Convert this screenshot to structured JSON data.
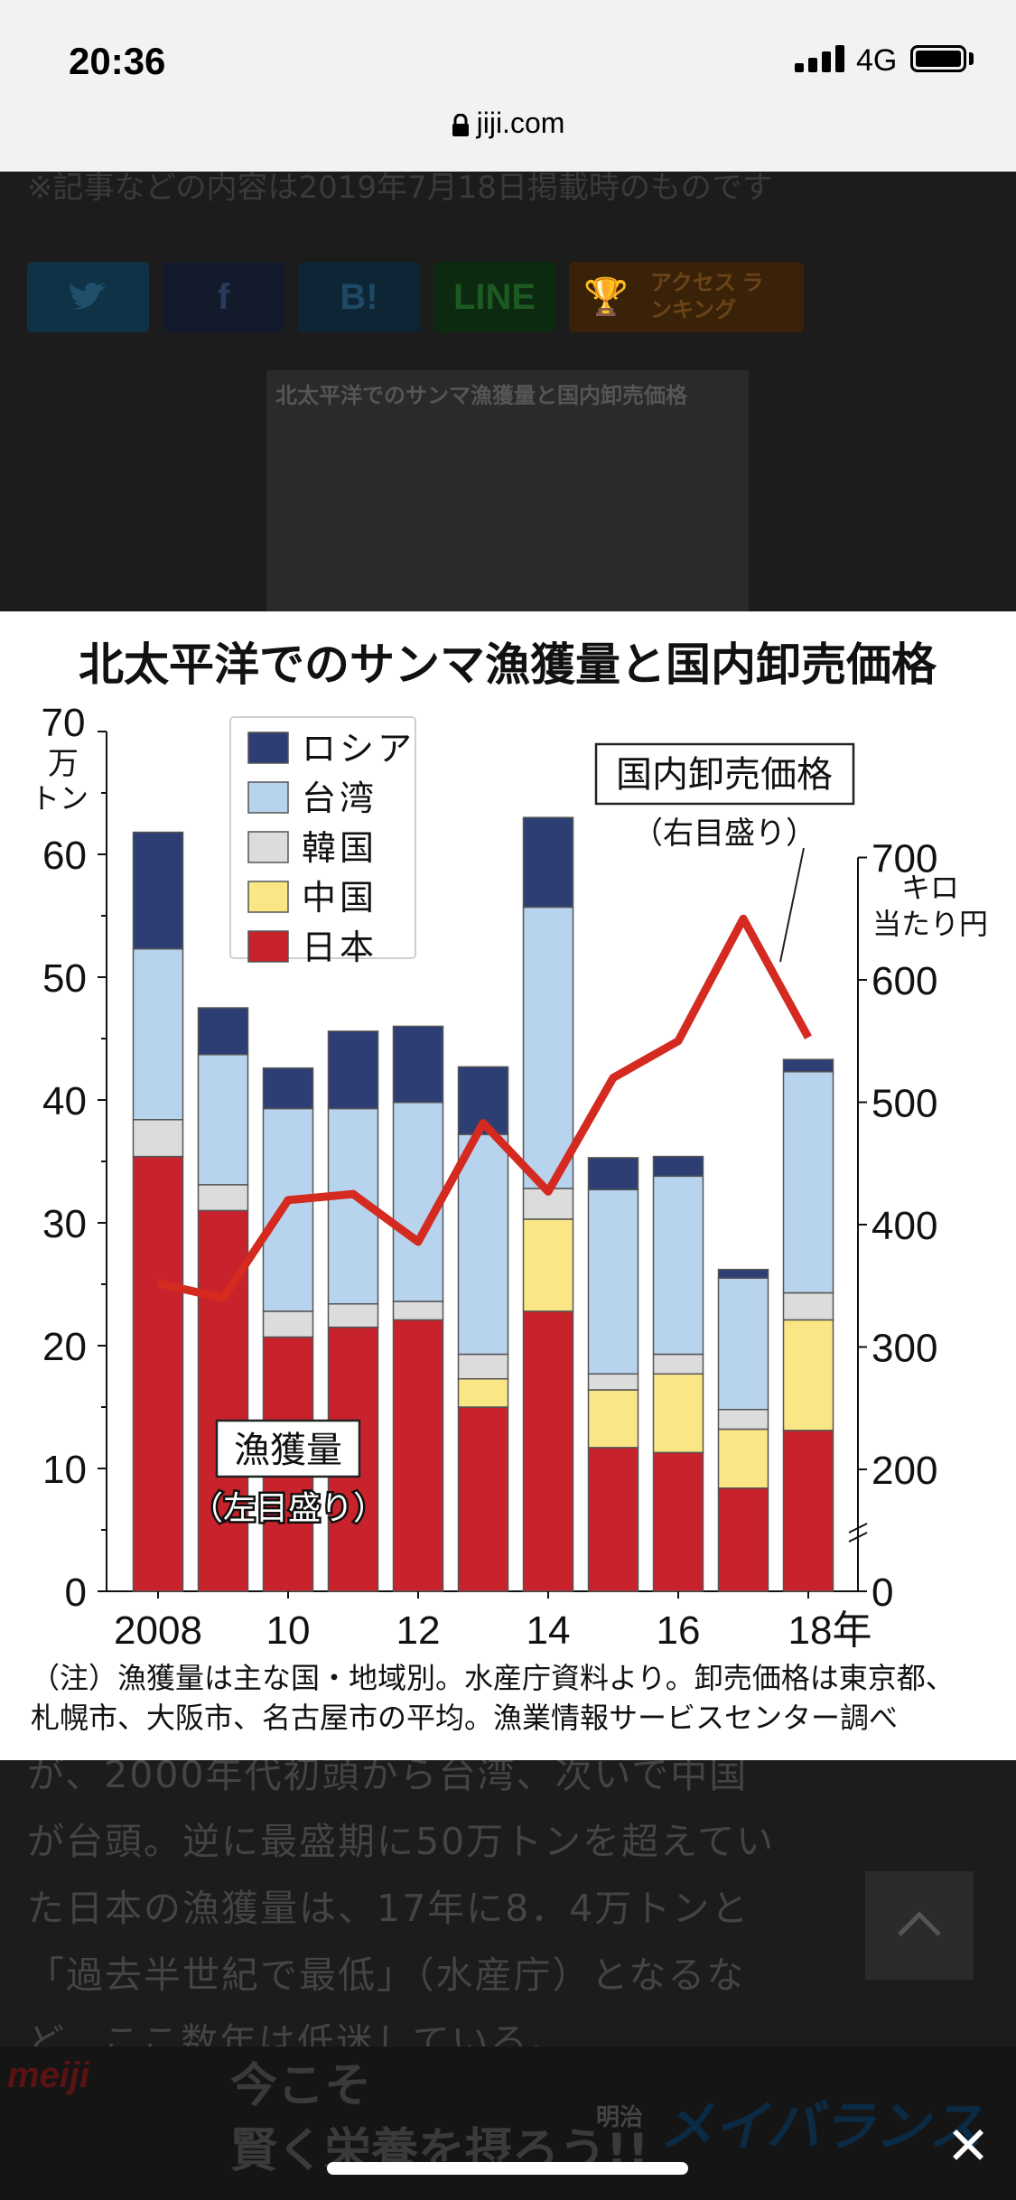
{
  "status_bar": {
    "time": "20:36",
    "network": "4G"
  },
  "browser": {
    "url": "jiji.com"
  },
  "article": {
    "notice": "※記事などの内容は2019年7月18日掲載時のものです",
    "share_buttons": [
      "",
      "f",
      "B!",
      "LINE",
      "アクセス ランキング"
    ],
    "thumbnail_title": "北太平洋でのサンマ漁獲量と国内卸売価格",
    "body_lines": [
      "が、2000年代初頭から台湾、次いで中国",
      "が台頭。逆に最盛期に50万トンを超えてい",
      "た日本の漁獲量は、17年に8．4万トンと",
      "「過去半世紀で最低」（水産庁）となるな",
      "ど、ここ数年は低迷している。"
    ]
  },
  "ad": {
    "logo": "meiji",
    "line1": "今こそ",
    "line2": "賢く栄養を摂ろう!!",
    "brand_small": "明治",
    "brand": "メイバランス"
  },
  "chart_data": {
    "type": "bar",
    "title": "北太平洋でのサンマ漁獲量と国内卸売価格",
    "categories": [
      "2008",
      "2009",
      "2010",
      "2011",
      "2012",
      "2013",
      "2014",
      "2015",
      "2016",
      "2017",
      "2018"
    ],
    "x_tick_labels": [
      "2008",
      "10",
      "12",
      "14",
      "16",
      "18年"
    ],
    "stacked": true,
    "series": [
      {
        "name": "日本",
        "color": "#c8232c",
        "values": [
          35.4,
          31.0,
          20.7,
          21.5,
          22.1,
          15.0,
          22.8,
          11.7,
          11.3,
          8.4,
          13.1
        ]
      },
      {
        "name": "中国",
        "color": "#fbe686",
        "values": [
          0,
          0,
          0,
          0,
          0,
          2.3,
          7.5,
          4.7,
          6.4,
          4.8,
          9.0
        ]
      },
      {
        "name": "韓国",
        "color": "#dcdcdc",
        "values": [
          3.0,
          2.1,
          2.1,
          1.9,
          1.5,
          2.0,
          2.5,
          1.3,
          1.6,
          1.6,
          2.2
        ]
      },
      {
        "name": "台湾",
        "color": "#b8d3ee",
        "values": [
          13.9,
          10.6,
          16.5,
          15.9,
          16.2,
          17.9,
          22.9,
          15.0,
          14.5,
          10.7,
          18.0
        ]
      },
      {
        "name": "ロシア",
        "color": "#2c3e74",
        "values": [
          9.5,
          3.8,
          3.3,
          6.3,
          6.2,
          5.5,
          7.3,
          2.6,
          1.6,
          0.7,
          1.0
        ]
      }
    ],
    "left_axis": {
      "label": "70\n万\nトン",
      "ylim": [
        0,
        70
      ],
      "ticks": [
        "0",
        "10",
        "20",
        "30",
        "40",
        "50",
        "60",
        "70"
      ]
    },
    "right_axis": {
      "label": "キロ\n当たり円",
      "ticks": [
        "0",
        "200",
        "300",
        "400",
        "500",
        "600",
        "700"
      ]
    },
    "line_series": {
      "name": "国内卸売価格",
      "axis": "right",
      "color": "#d42a20",
      "values": [
        352,
        340,
        420,
        425,
        386,
        483,
        427,
        520,
        550,
        650,
        553
      ]
    },
    "annotations": {
      "line_label": "国内卸売価格",
      "line_sub": "（右目盛り）",
      "bar_label": "漁獲量",
      "bar_sub": "（左目盛り）"
    },
    "legend_position": "top-left",
    "note_line1": "（注）漁獲量は主な国・地域別。水産庁資料より。卸売価格は東京都、",
    "note_line2": "札幌市、大阪市、名古屋市の平均。漁業情報サービスセンター調べ",
    "colors": {
      "frame": "#555555"
    }
  }
}
